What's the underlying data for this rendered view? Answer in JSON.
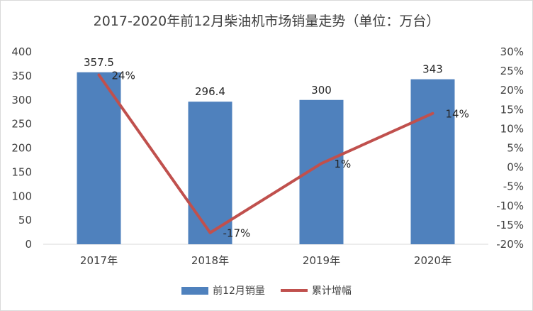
{
  "chart_data": {
    "type": "bar",
    "title": "2017-2020年前12月柴油机市场销量走势（单位：万台）",
    "categories": [
      "2017年",
      "2018年",
      "2019年",
      "2020年"
    ],
    "series": [
      {
        "name": "前12月销量",
        "type": "bar",
        "axis": "left",
        "color": "#4f81bd",
        "values": [
          357.5,
          296.4,
          300,
          343
        ],
        "labels": [
          "357.5",
          "296.4",
          "300",
          "343"
        ]
      },
      {
        "name": "累计增幅",
        "type": "line",
        "axis": "right",
        "color": "#c0504d",
        "values": [
          24,
          -17,
          1,
          14
        ],
        "labels": [
          "24%",
          "-17%",
          "1%",
          "14%"
        ]
      }
    ],
    "y_left": {
      "min": 0,
      "max": 400,
      "ticks": [
        0,
        50,
        100,
        150,
        200,
        250,
        300,
        350,
        400
      ],
      "tick_labels": [
        "0",
        "50",
        "100",
        "150",
        "200",
        "250",
        "300",
        "350",
        "400"
      ]
    },
    "y_right": {
      "min": -20,
      "max": 30,
      "ticks": [
        -20,
        -15,
        -10,
        -5,
        0,
        5,
        10,
        15,
        20,
        25,
        30
      ],
      "tick_labels": [
        "-20%",
        "-15%",
        "-10%",
        "-5%",
        "0%",
        "5%",
        "10%",
        "15%",
        "20%",
        "25%",
        "30%"
      ]
    },
    "grid": false,
    "legend": "bottom"
  }
}
